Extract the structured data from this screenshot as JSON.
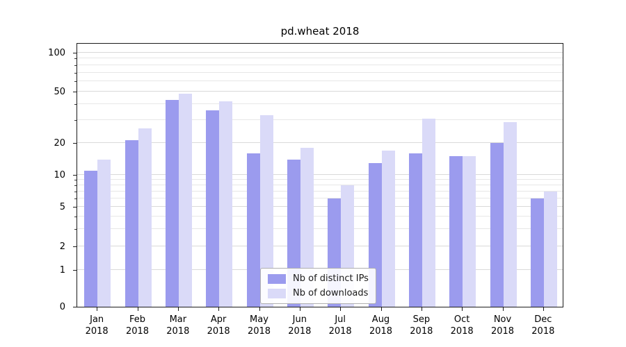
{
  "chart_data": {
    "type": "bar",
    "title": "pd.wheat 2018",
    "x_year": "2018",
    "categories": [
      "Jan",
      "Feb",
      "Mar",
      "Apr",
      "May",
      "Jun",
      "Jul",
      "Aug",
      "Sep",
      "Oct",
      "Nov",
      "Dec"
    ],
    "series": [
      {
        "name": "Nb of distinct IPs",
        "color": "#9b9bee",
        "values": [
          11,
          21,
          43,
          36,
          16,
          14,
          6,
          13,
          16,
          15,
          20,
          6
        ]
      },
      {
        "name": "Nb of downloads",
        "color": "#dadaf8",
        "values": [
          14,
          26,
          48,
          42,
          33,
          18,
          8,
          17,
          31,
          15,
          29,
          7
        ]
      }
    ],
    "yticks": [
      0,
      1,
      2,
      5,
      10,
      20,
      50,
      100
    ],
    "yscale": "symlog",
    "ylim": [
      0,
      120
    ],
    "grid": true,
    "legend_position": "lower center"
  }
}
